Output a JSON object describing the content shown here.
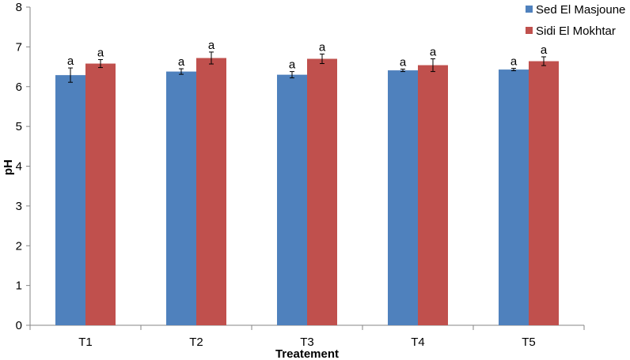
{
  "chart_data": {
    "type": "bar",
    "xlabel": "Treatement",
    "ylabel": "pH",
    "ylim": [
      0,
      8
    ],
    "yticks": [
      0,
      1,
      2,
      3,
      4,
      5,
      6,
      7,
      8
    ],
    "grid": false,
    "legend_position": "top-right",
    "categories": [
      "T1",
      "T2",
      "T3",
      "T4",
      "T5"
    ],
    "series": [
      {
        "name": "Sed El Masjoune",
        "color": "#4F81BD",
        "values": [
          6.29,
          6.38,
          6.3,
          6.41,
          6.43
        ],
        "errors": [
          0.18,
          0.07,
          0.08,
          0.03,
          0.03
        ],
        "labels": [
          "a",
          "a",
          "a",
          "a",
          "a"
        ]
      },
      {
        "name": "Sidi El Mokhtar",
        "color": "#C0504D",
        "values": [
          6.58,
          6.72,
          6.7,
          6.54,
          6.64
        ],
        "errors": [
          0.1,
          0.15,
          0.12,
          0.16,
          0.11
        ],
        "labels": [
          "a",
          "a",
          "a",
          "a",
          "a"
        ]
      }
    ]
  }
}
